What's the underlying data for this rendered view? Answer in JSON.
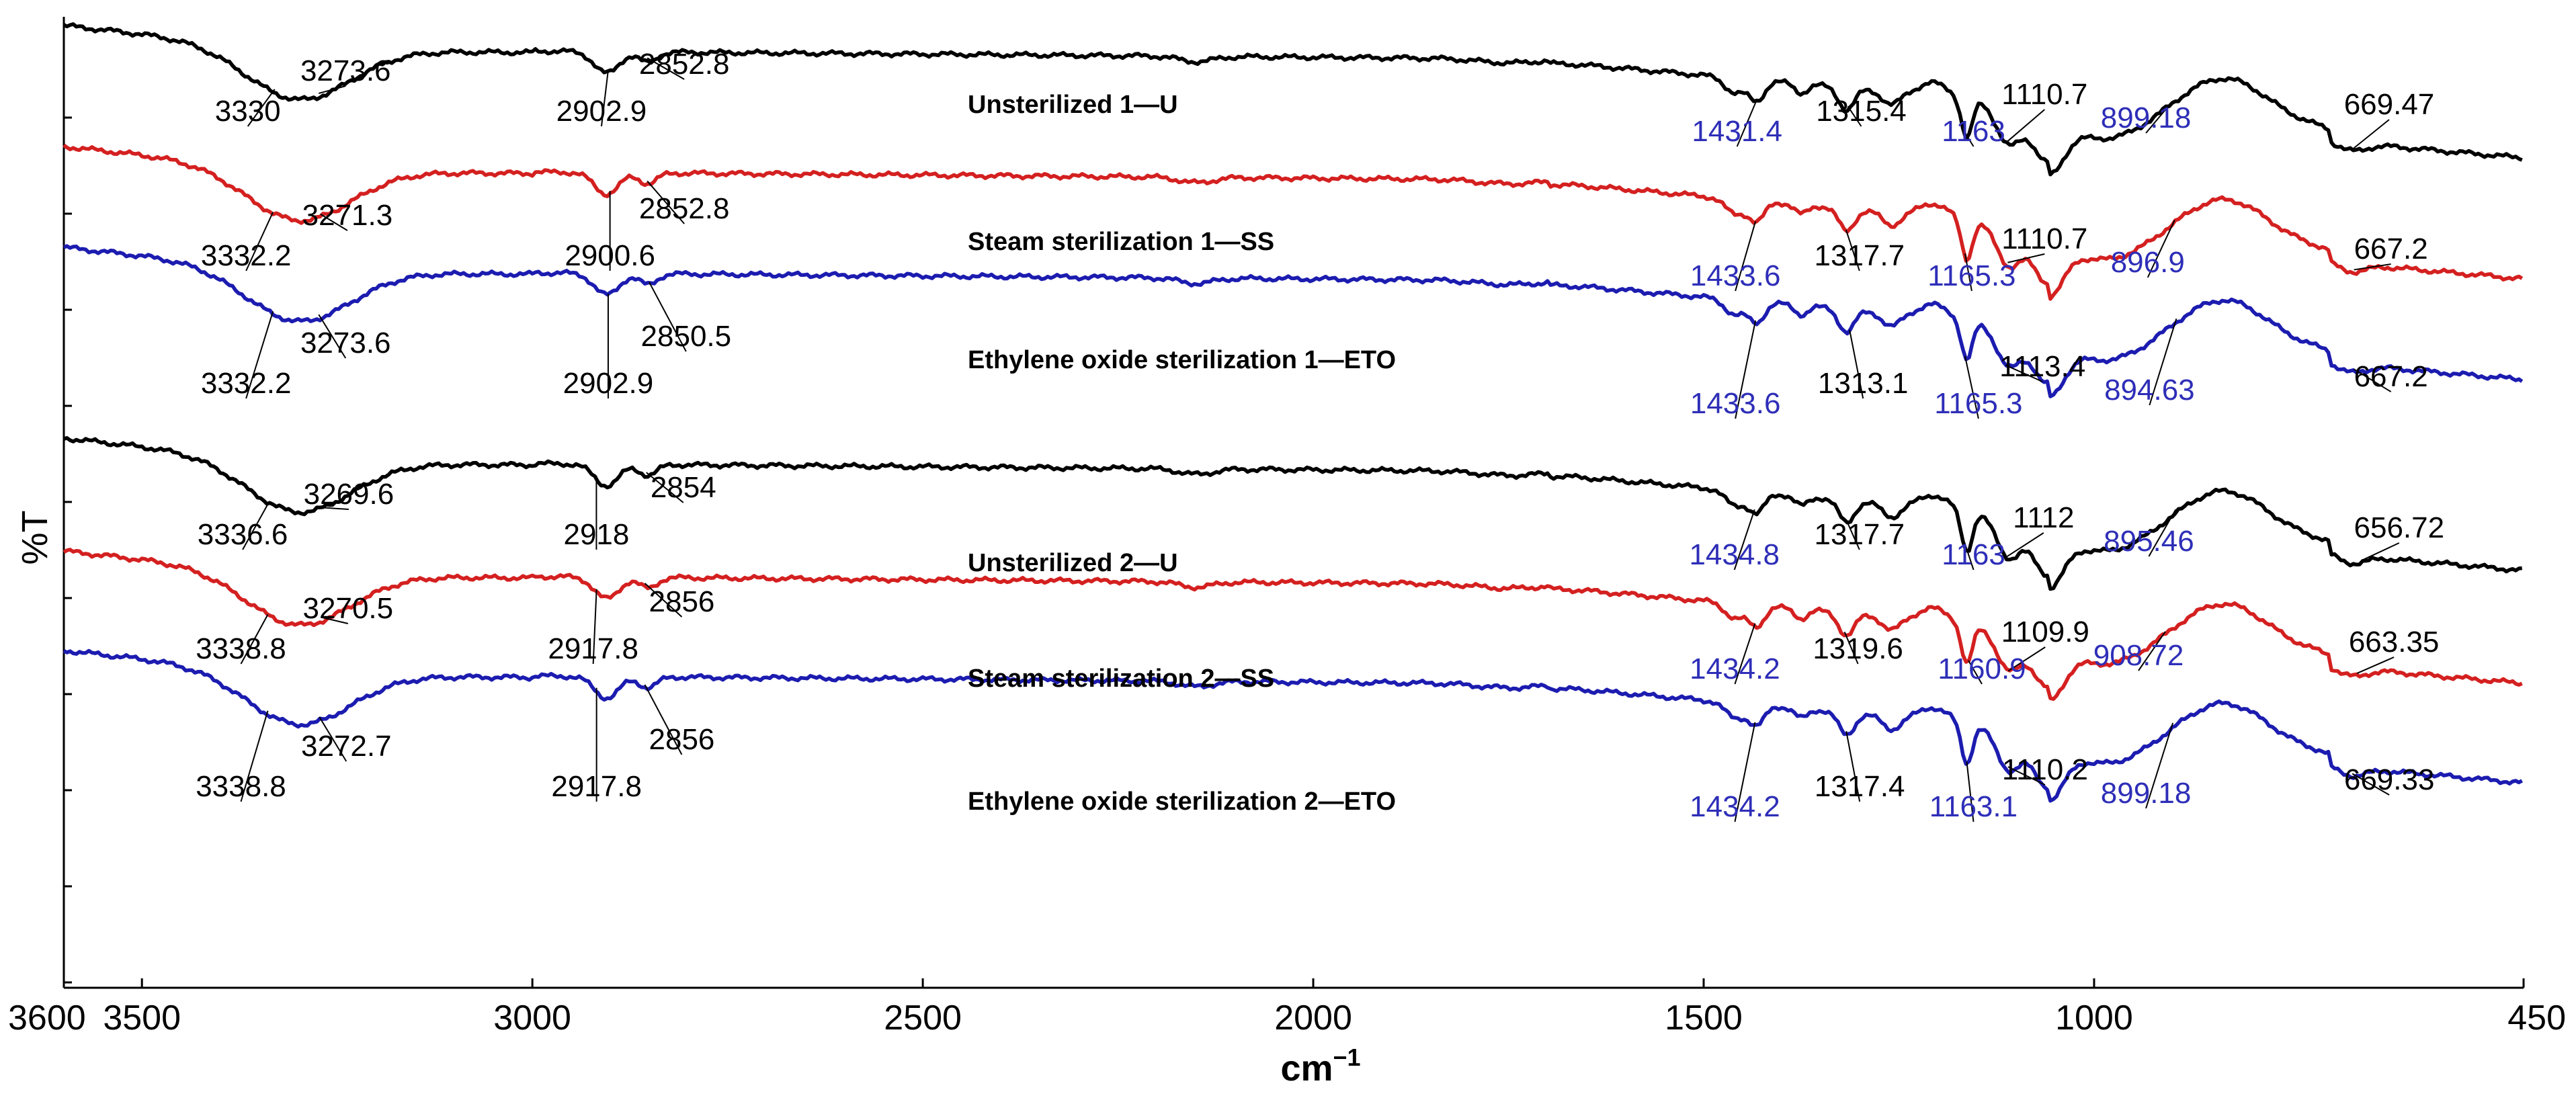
{
  "chart_data": {
    "type": "line",
    "title": "",
    "xlabel": "cm",
    "xlabel_superscript": "−1",
    "ylabel": "%T",
    "xlim": [
      3600,
      450
    ],
    "x_reversed": true,
    "x_ticks": [
      {
        "value": 3600,
        "label": "3600"
      },
      {
        "value": 3500,
        "label": "3500"
      },
      {
        "value": 3000,
        "label": "3000"
      },
      {
        "value": 2500,
        "label": "2500"
      },
      {
        "value": 2000,
        "label": "2000"
      },
      {
        "value": 1500,
        "label": "1500"
      },
      {
        "value": 1000,
        "label": "1000"
      },
      {
        "value": 450,
        "label": "450"
      }
    ],
    "series": [
      {
        "name": "Unsterilized 1—U",
        "color": "#000000",
        "peaks": [
          {
            "x": 3330,
            "label": "3330",
            "color": "#000000"
          },
          {
            "x": 3273.6,
            "label": "3273.6",
            "color": "#000000"
          },
          {
            "x": 2902.9,
            "label": "2902.9",
            "color": "#000000"
          },
          {
            "x": 2852.8,
            "label": "2852.8",
            "color": "#000000"
          },
          {
            "x": 1431.4,
            "label": "1431.4",
            "color": "#2e2eb8"
          },
          {
            "x": 1315.4,
            "label": "1315.4",
            "color": "#000000"
          },
          {
            "x": 1163,
            "label": "1163",
            "color": "#2e2eb8"
          },
          {
            "x": 1110.7,
            "label": "1110.7",
            "color": "#000000"
          },
          {
            "x": 899.18,
            "label": "899.18",
            "color": "#2e2eb8"
          },
          {
            "x": 669.47,
            "label": "669.47",
            "color": "#000000"
          }
        ]
      },
      {
        "name": "Steam sterilization 1—SS",
        "color": "#d42020",
        "peaks": [
          {
            "x": 3332.2,
            "label": "3332.2",
            "color": "#000000"
          },
          {
            "x": 3271.3,
            "label": "3271.3",
            "color": "#000000"
          },
          {
            "x": 2900.6,
            "label": "2900.6",
            "color": "#000000"
          },
          {
            "x": 2852.8,
            "label": "2852.8",
            "color": "#000000"
          },
          {
            "x": 1433.6,
            "label": "1433.6",
            "color": "#2e2eb8"
          },
          {
            "x": 1317.7,
            "label": "1317.7",
            "color": "#000000"
          },
          {
            "x": 1165.3,
            "label": "1165.3",
            "color": "#2e2eb8"
          },
          {
            "x": 1110.7,
            "label": "1110.7",
            "color": "#000000"
          },
          {
            "x": 896.9,
            "label": "896.9",
            "color": "#2e2eb8"
          },
          {
            "x": 667.2,
            "label": "667.2",
            "color": "#000000"
          }
        ]
      },
      {
        "name": "Ethylene oxide sterilization 1—ETO",
        "color": "#1c1cb0",
        "peaks": [
          {
            "x": 3332.2,
            "label": "3332.2",
            "color": "#000000"
          },
          {
            "x": 3273.6,
            "label": "3273.6",
            "color": "#000000"
          },
          {
            "x": 2902.9,
            "label": "2902.9",
            "color": "#000000"
          },
          {
            "x": 2850.5,
            "label": "2850.5",
            "color": "#000000"
          },
          {
            "x": 1433.6,
            "label": "1433.6",
            "color": "#2e2eb8"
          },
          {
            "x": 1313.1,
            "label": "1313.1",
            "color": "#000000"
          },
          {
            "x": 1165.3,
            "label": "1165.3",
            "color": "#2e2eb8"
          },
          {
            "x": 1113.4,
            "label": "1113.4",
            "color": "#000000"
          },
          {
            "x": 894.63,
            "label": "894.63",
            "color": "#2e2eb8"
          },
          {
            "x": 667.2,
            "label": "667.2",
            "color": "#000000"
          }
        ]
      },
      {
        "name": "Unsterilized 2—U",
        "color": "#000000",
        "peaks": [
          {
            "x": 3336.6,
            "label": "3336.6",
            "color": "#000000"
          },
          {
            "x": 3269.6,
            "label": "3269.6",
            "color": "#000000"
          },
          {
            "x": 2918,
            "label": "2918",
            "color": "#000000"
          },
          {
            "x": 2854,
            "label": "2854",
            "color": "#000000"
          },
          {
            "x": 1434.8,
            "label": "1434.8",
            "color": "#2e2eb8"
          },
          {
            "x": 1317.7,
            "label": "1317.7",
            "color": "#000000"
          },
          {
            "x": 1163,
            "label": "1163",
            "color": "#2e2eb8"
          },
          {
            "x": 1112,
            "label": "1112",
            "color": "#000000"
          },
          {
            "x": 895.46,
            "label": "895.46",
            "color": "#2e2eb8"
          },
          {
            "x": 656.72,
            "label": "656.72",
            "color": "#000000"
          }
        ]
      },
      {
        "name": "Steam sterilization 2—SS",
        "color": "#d42020",
        "peaks": [
          {
            "x": 3338.8,
            "label": "3338.8",
            "color": "#000000"
          },
          {
            "x": 3270.5,
            "label": "3270.5",
            "color": "#000000"
          },
          {
            "x": 2917.8,
            "label": "2917.8",
            "color": "#000000"
          },
          {
            "x": 2856,
            "label": "2856",
            "color": "#000000"
          },
          {
            "x": 1434.2,
            "label": "1434.2",
            "color": "#2e2eb8"
          },
          {
            "x": 1319.6,
            "label": "1319.6",
            "color": "#000000"
          },
          {
            "x": 1160.9,
            "label": "1160.9",
            "color": "#2e2eb8"
          },
          {
            "x": 1109.9,
            "label": "1109.9",
            "color": "#000000"
          },
          {
            "x": 908.72,
            "label": "908.72",
            "color": "#2e2eb8"
          },
          {
            "x": 663.35,
            "label": "663.35",
            "color": "#000000"
          }
        ]
      },
      {
        "name": "Ethylene oxide sterilization 2—ETO",
        "color": "#1c1cb0",
        "peaks": [
          {
            "x": 3338.8,
            "label": "3338.8",
            "color": "#000000"
          },
          {
            "x": 3272.7,
            "label": "3272.7",
            "color": "#000000"
          },
          {
            "x": 2917.8,
            "label": "2917.8",
            "color": "#000000"
          },
          {
            "x": 2856,
            "label": "2856",
            "color": "#000000"
          },
          {
            "x": 1434.2,
            "label": "1434.2",
            "color": "#2e2eb8"
          },
          {
            "x": 1317.4,
            "label": "1317.4",
            "color": "#000000"
          },
          {
            "x": 1163.1,
            "label": "1163.1",
            "color": "#2e2eb8"
          },
          {
            "x": 1110.2,
            "label": "1110.2",
            "color": "#000000"
          },
          {
            "x": 899.18,
            "label": "899.18",
            "color": "#2e2eb8"
          },
          {
            "x": 669.33,
            "label": "669.33",
            "color": "#000000"
          }
        ]
      }
    ]
  }
}
